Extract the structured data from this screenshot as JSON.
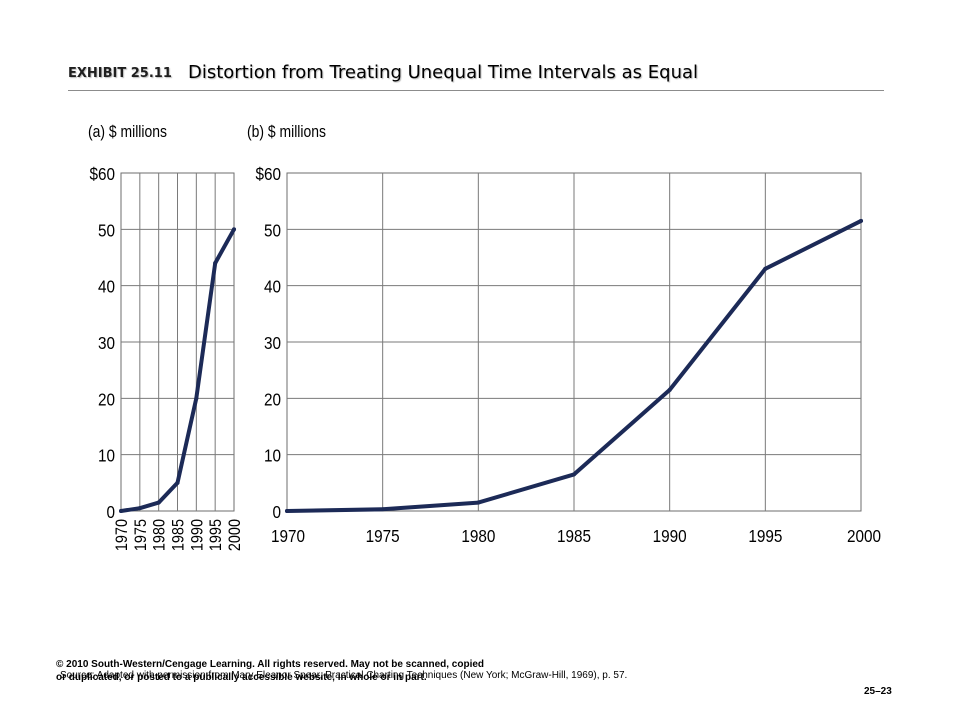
{
  "header": {
    "exhibit": "EXHIBIT 25.11",
    "title": "Distortion from Treating Unequal Time Intervals as Equal"
  },
  "chart_data": [
    {
      "type": "line",
      "panel": "a",
      "title": "(a) $ millions",
      "x_spacing": "equal",
      "x": [
        1970,
        1975,
        1980,
        1985,
        1990,
        1995,
        2000
      ],
      "y": [
        0,
        0.5,
        1.5,
        5,
        20,
        44,
        50
      ],
      "ylim": [
        0,
        60
      ],
      "y_ticks": [
        0,
        10,
        20,
        30,
        40,
        50,
        60
      ],
      "y_tick_labels": [
        "0",
        "10",
        "20",
        "30",
        "40",
        "50",
        "$60"
      ],
      "x_tick_labels": [
        "1970",
        "1975",
        "1980",
        "1985",
        "1990",
        "1995",
        "2000"
      ],
      "grid": true,
      "line_color": "#1c2a57"
    },
    {
      "type": "line",
      "panel": "b",
      "title": "(b) $ millions",
      "x_spacing": "proportional",
      "x": [
        1970,
        1975,
        1980,
        1985,
        1990,
        1995,
        2000
      ],
      "y": [
        0,
        0.3,
        1.5,
        6.5,
        21.5,
        43,
        51.5
      ],
      "xlim": [
        1970,
        2000
      ],
      "ylim": [
        0,
        60
      ],
      "y_ticks": [
        0,
        10,
        20,
        30,
        40,
        50,
        60
      ],
      "y_tick_labels": [
        "0",
        "10",
        "20",
        "30",
        "40",
        "50",
        "$60"
      ],
      "x_tick_labels": [
        "1970",
        "1975",
        "1980",
        "1985",
        "1990",
        "1995",
        "2000"
      ],
      "grid": true,
      "line_color": "#1c2a57"
    }
  ],
  "footer": {
    "source": "Source: Adapted with permission from Mary Eleanor Spear, Practical Charting Techniques (New York; McGraw-Hill, 1969), p. 57.",
    "copyright": "© 2010 South-Western/Cengage Learning. All rights reserved. May not be scanned, copied or duplicated, or posted to a publically accessible website, in whole or in part.",
    "page": "25–23"
  }
}
